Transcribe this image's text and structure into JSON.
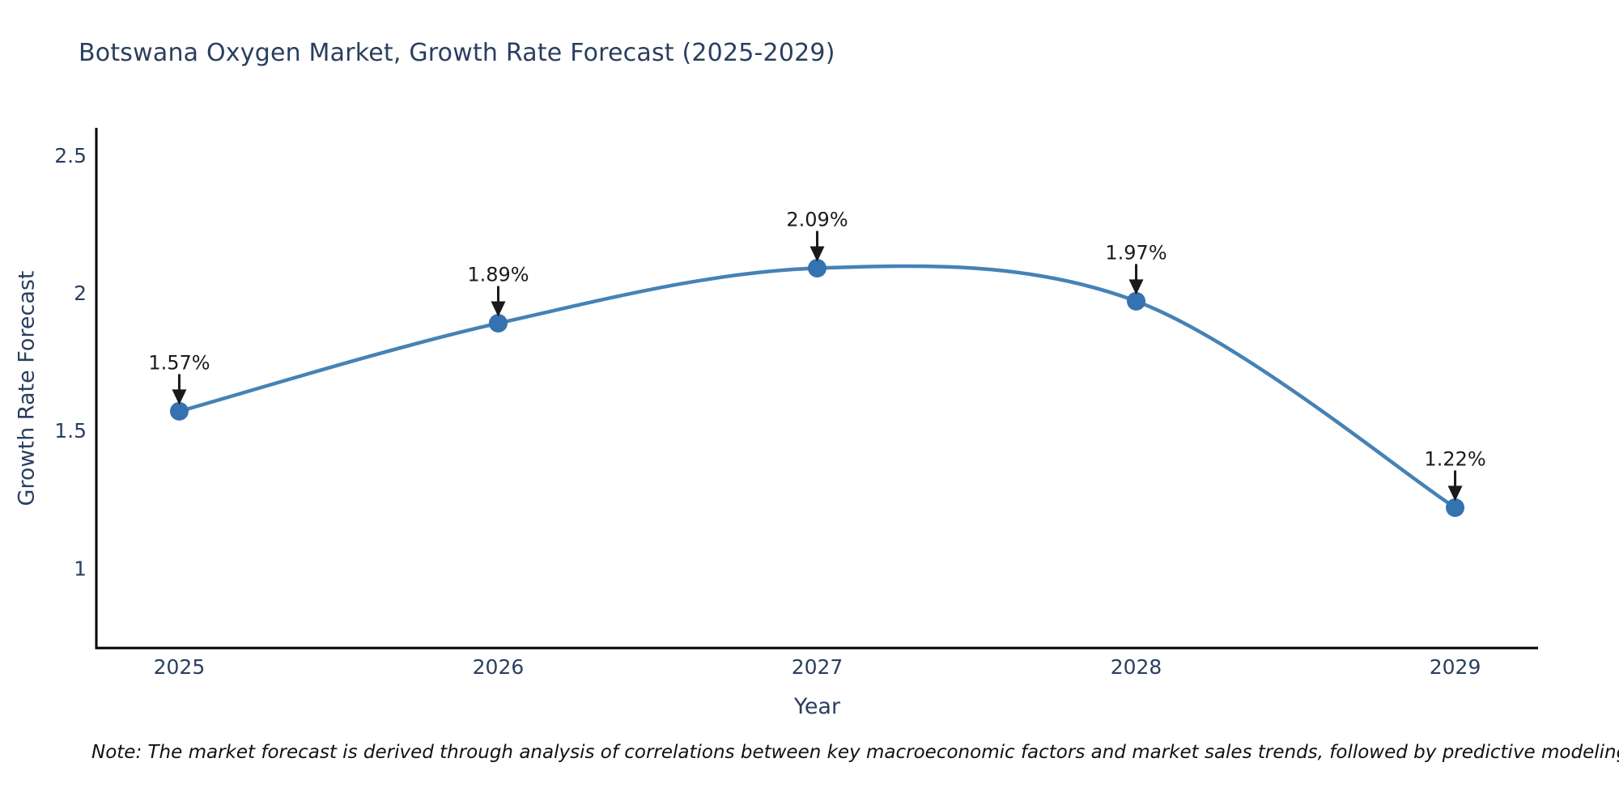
{
  "title": "Botswana Oxygen Market, Growth Rate Forecast (2025-2029)",
  "note": "Note: The market forecast is derived through analysis of correlations between key macroeconomic factors and market sales trends, followed by predictive modeling to project future sales",
  "chart_data": {
    "type": "line",
    "title": "Botswana Oxygen Market, Growth Rate Forecast (2025-2029)",
    "xlabel": "Year",
    "ylabel": "Growth Rate Forecast",
    "x": [
      2025,
      2026,
      2027,
      2028,
      2029
    ],
    "values": [
      1.57,
      1.89,
      2.09,
      1.97,
      1.22
    ],
    "point_labels": [
      "1.57%",
      "1.89%",
      "2.09%",
      "1.97%",
      "1.22%"
    ],
    "xticks": [
      "2025",
      "2026",
      "2027",
      "2028",
      "2029"
    ],
    "yticks": [
      "1",
      "1.5",
      "2",
      "2.5"
    ],
    "ytick_values": [
      1,
      1.5,
      2,
      2.5
    ],
    "xlim": [
      2024.74,
      2029.26
    ],
    "ylim": [
      0.71,
      2.6
    ],
    "grid": false,
    "legend": "none",
    "line_shape": "spline",
    "annotation_style": "label-with-down-arrow",
    "colors": {
      "line": "#4682b4",
      "marker": "#3572b0",
      "axis": "#000000",
      "tick_label": "#2a3f5f",
      "title": "#2a3f5f",
      "annotation": "#1a1a1a",
      "background": "#ffffff"
    }
  }
}
